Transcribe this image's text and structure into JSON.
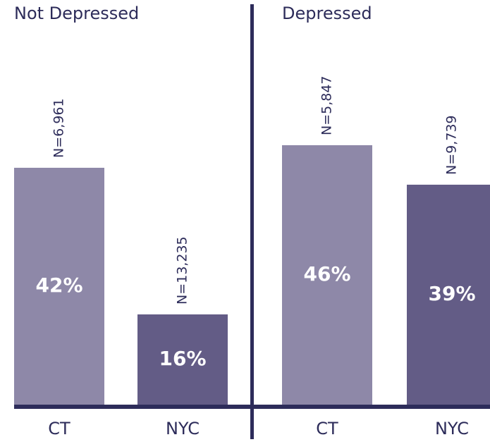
{
  "chart_data": [
    {
      "type": "bar",
      "title": "Not Depressed",
      "categories": [
        "CT",
        "NYC"
      ],
      "values": [
        42,
        16
      ],
      "value_labels": [
        "42%",
        "16%"
      ],
      "annotations": [
        "N=6,961",
        "N=13,235"
      ],
      "colors": [
        "#8e88a8",
        "#635c86"
      ]
    },
    {
      "type": "bar",
      "title": "Depressed",
      "categories": [
        "CT",
        "NYC"
      ],
      "values": [
        46,
        39
      ],
      "value_labels": [
        "46%",
        "39%"
      ],
      "annotations": [
        "N=5,847",
        "N=9,739"
      ],
      "colors": [
        "#8e88a8",
        "#635c86"
      ]
    }
  ]
}
